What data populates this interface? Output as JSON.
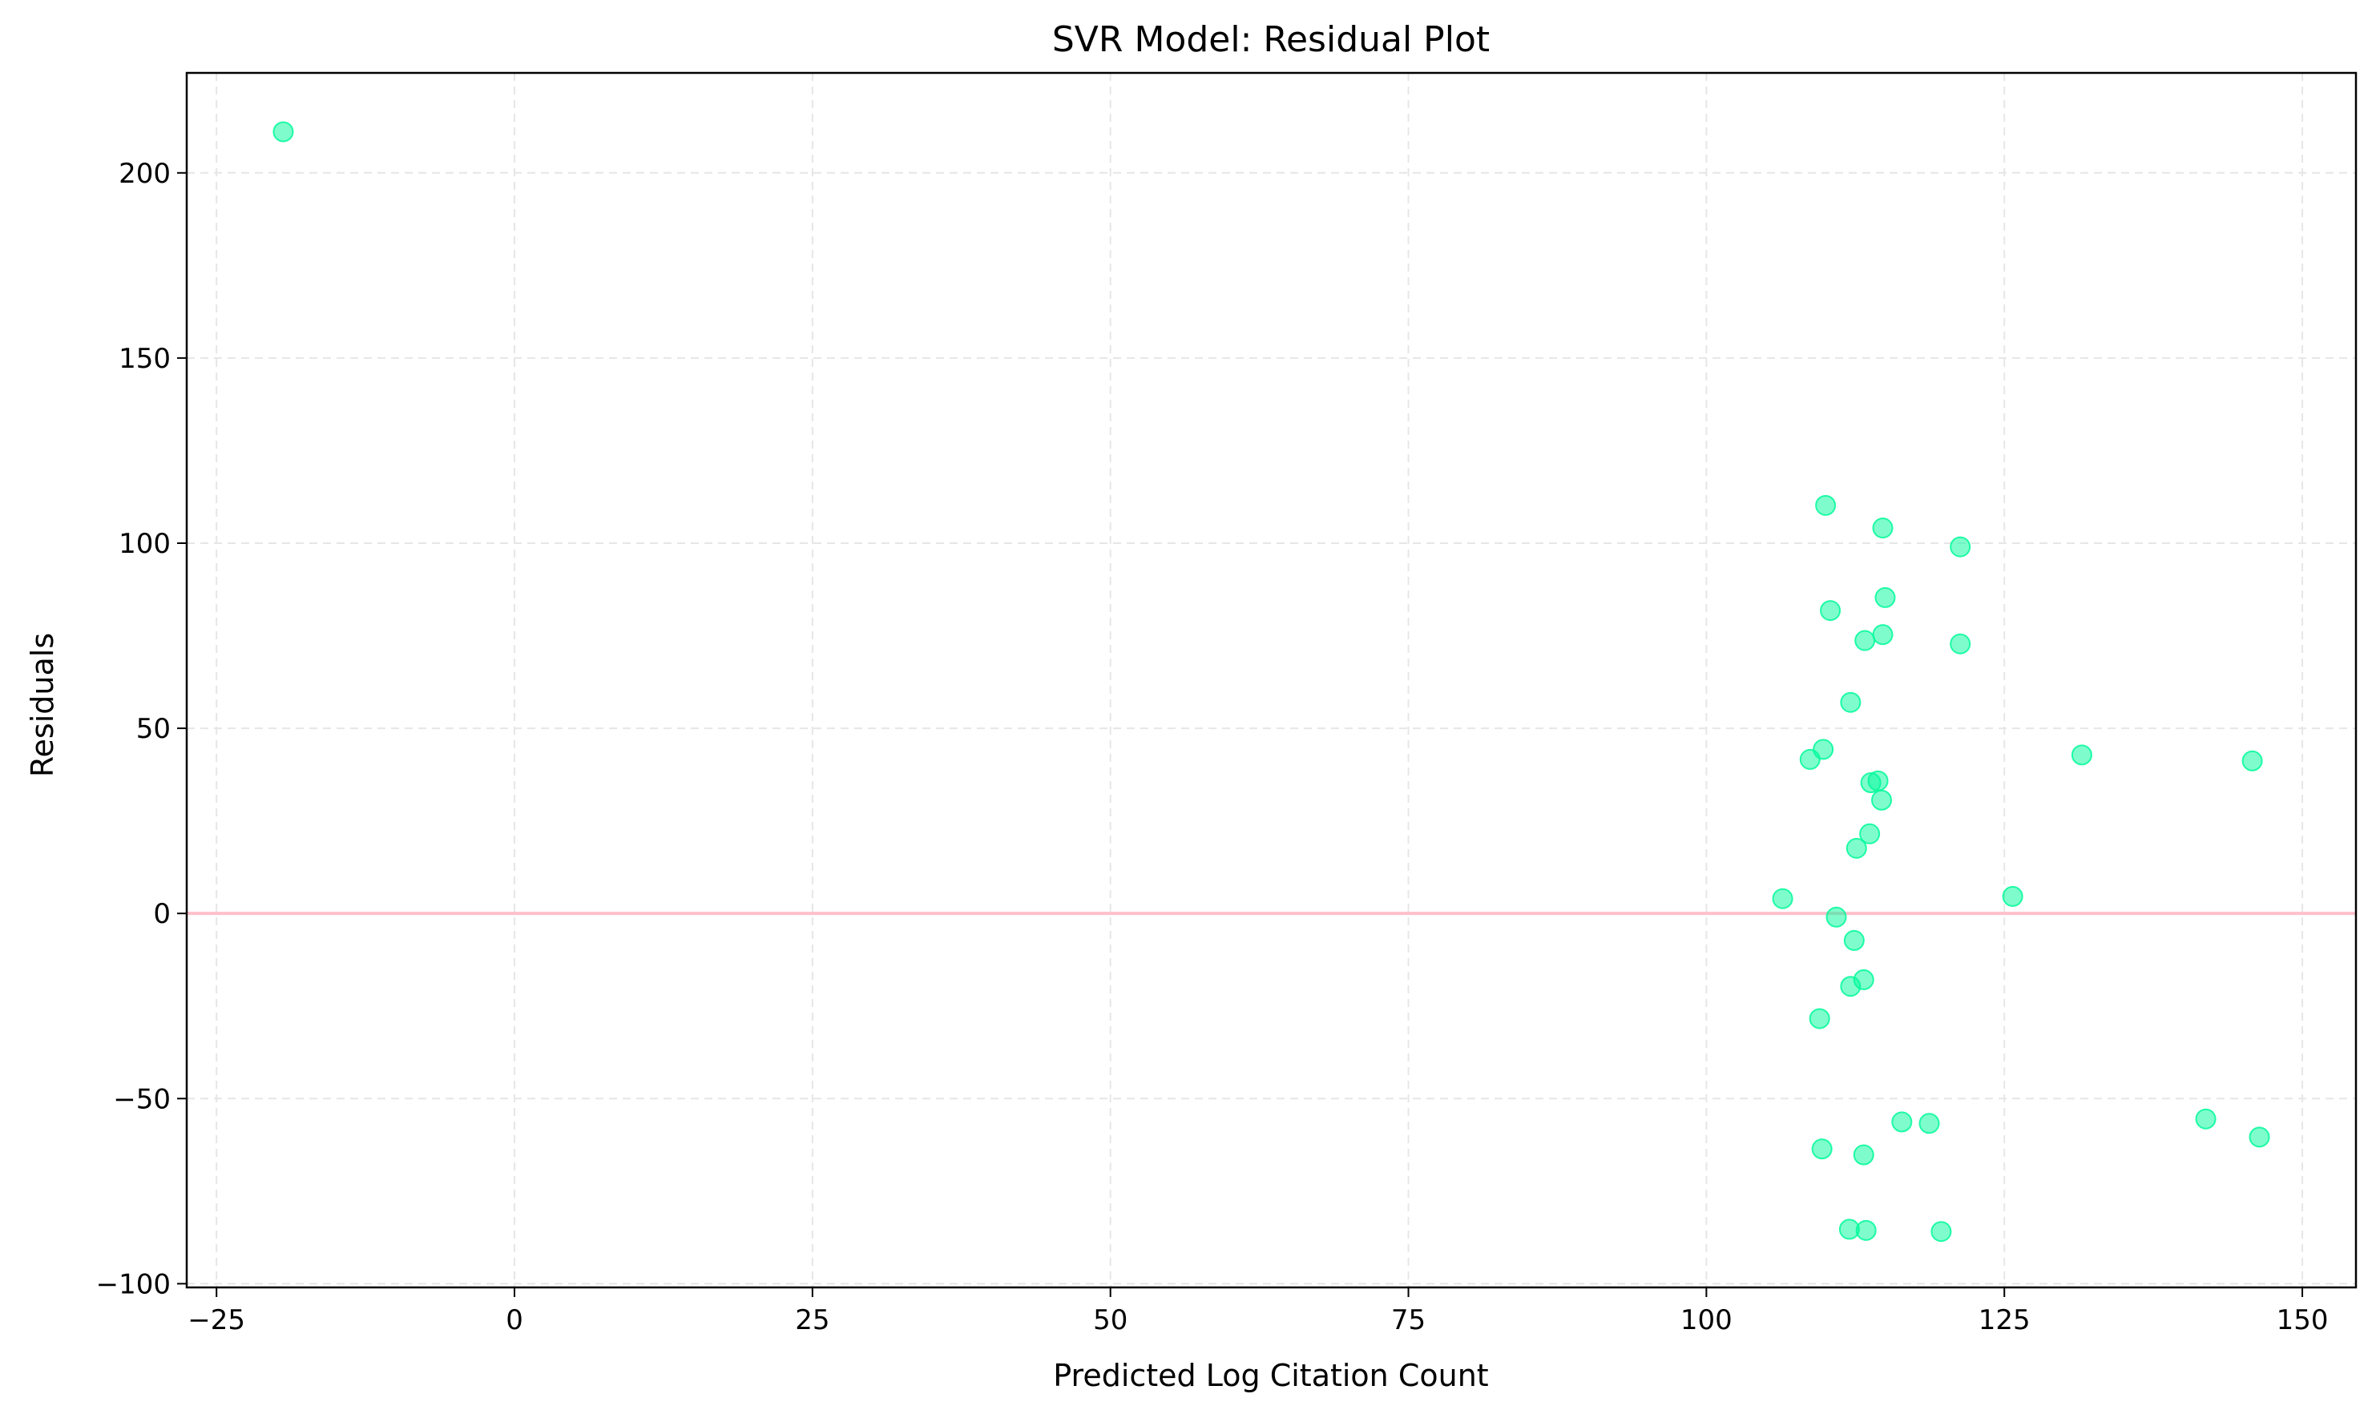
{
  "chart_data": {
    "type": "scatter",
    "title": "SVR Model: Residual Plot",
    "xlabel": "Predicted Log Citation Count",
    "ylabel": "Residuals",
    "xlim": [
      -27.5,
      154.5
    ],
    "ylim": [
      -101,
      227
    ],
    "xticks": [
      -25,
      0,
      25,
      50,
      75,
      100,
      125,
      150
    ],
    "xtick_labels": [
      "−25",
      "0",
      "25",
      "50",
      "75",
      "100",
      "125",
      "150"
    ],
    "yticks": [
      -100,
      -50,
      0,
      50,
      100,
      150,
      200
    ],
    "ytick_labels": [
      "−100",
      "−50",
      "0",
      "50",
      "100",
      "150",
      "200"
    ],
    "grid": true,
    "point_color": "#00FA9A",
    "point_alpha": 0.5,
    "reference_line": {
      "y": 0,
      "color": "#FFC0CB"
    },
    "points": [
      {
        "x": -19.4,
        "y": 211.1
      },
      {
        "x": 110.0,
        "y": 110.2
      },
      {
        "x": 114.8,
        "y": 104.1
      },
      {
        "x": 121.3,
        "y": 99.0
      },
      {
        "x": 115.0,
        "y": 85.3
      },
      {
        "x": 110.4,
        "y": 81.8
      },
      {
        "x": 114.8,
        "y": 75.3
      },
      {
        "x": 113.3,
        "y": 73.7
      },
      {
        "x": 121.3,
        "y": 72.8
      },
      {
        "x": 112.1,
        "y": 57.0
      },
      {
        "x": 109.8,
        "y": 44.3
      },
      {
        "x": 108.7,
        "y": 41.6
      },
      {
        "x": 131.5,
        "y": 42.8
      },
      {
        "x": 145.8,
        "y": 41.2
      },
      {
        "x": 114.4,
        "y": 35.8
      },
      {
        "x": 113.8,
        "y": 35.3
      },
      {
        "x": 114.7,
        "y": 30.6
      },
      {
        "x": 113.7,
        "y": 21.5
      },
      {
        "x": 112.6,
        "y": 17.6
      },
      {
        "x": 106.4,
        "y": 4.0
      },
      {
        "x": 125.7,
        "y": 4.6
      },
      {
        "x": 110.9,
        "y": -1.0
      },
      {
        "x": 112.4,
        "y": -7.3
      },
      {
        "x": 113.2,
        "y": -17.9
      },
      {
        "x": 112.1,
        "y": -19.7
      },
      {
        "x": 109.5,
        "y": -28.4
      },
      {
        "x": 116.4,
        "y": -56.3
      },
      {
        "x": 118.7,
        "y": -56.7
      },
      {
        "x": 141.9,
        "y": -55.5
      },
      {
        "x": 146.4,
        "y": -60.4
      },
      {
        "x": 109.7,
        "y": -63.6
      },
      {
        "x": 113.2,
        "y": -65.2
      },
      {
        "x": 112.0,
        "y": -85.3
      },
      {
        "x": 113.4,
        "y": -85.6
      },
      {
        "x": 119.7,
        "y": -85.9
      }
    ]
  }
}
